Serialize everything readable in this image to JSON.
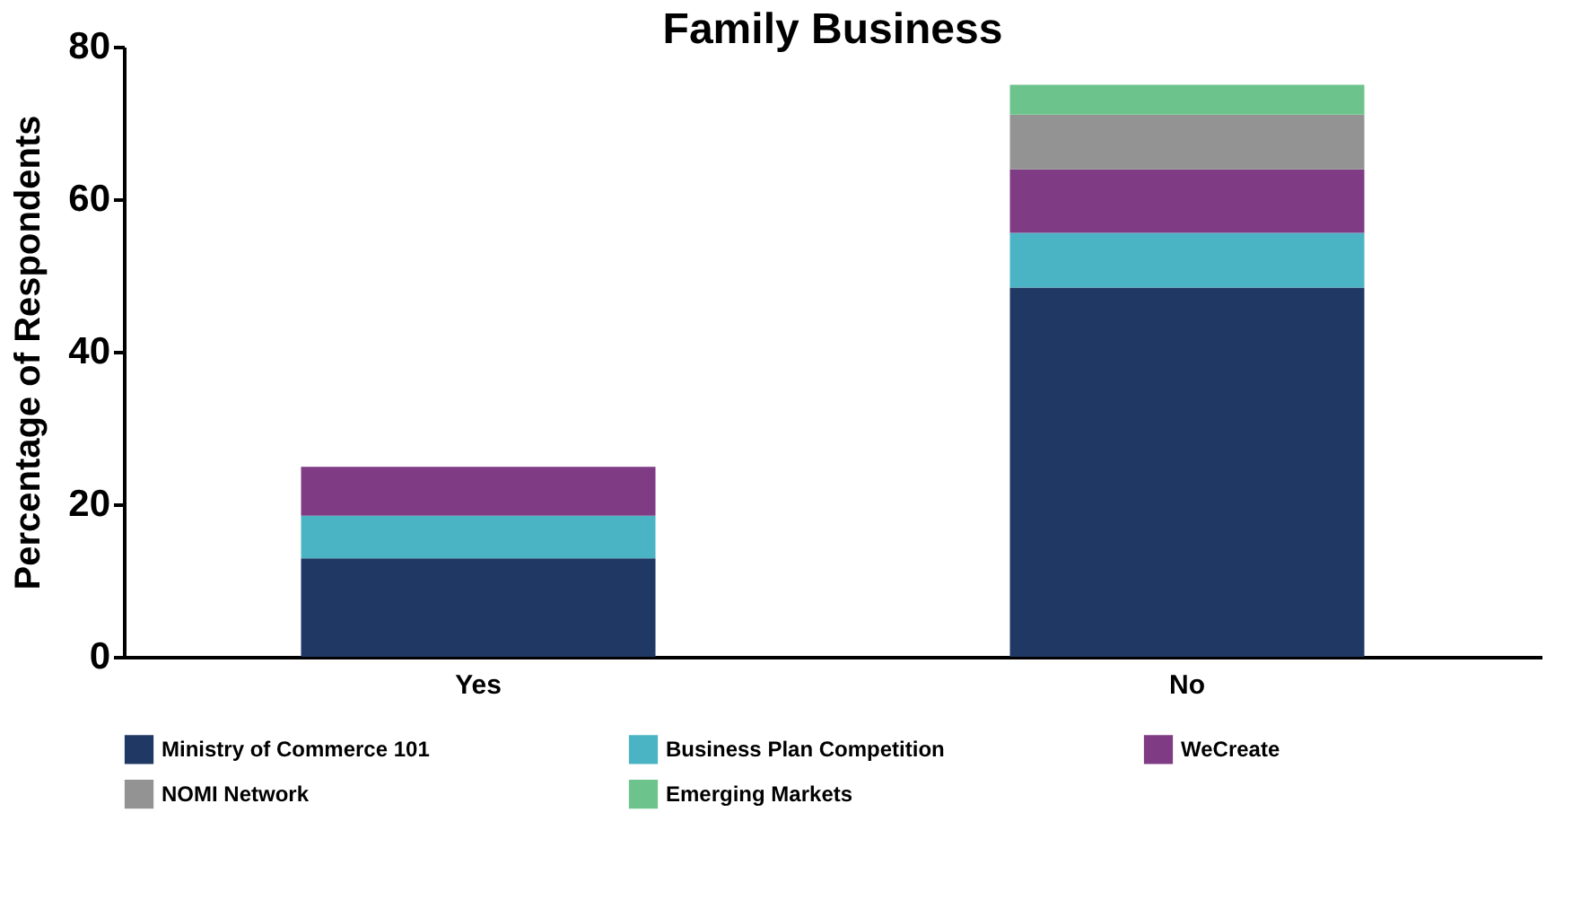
{
  "chart_data": {
    "type": "bar",
    "title": "Family Business",
    "ylabel": "Percentage of Respondents",
    "categories": [
      "Yes",
      "No"
    ],
    "stacked": true,
    "series": [
      {
        "name": "Ministry of Commerce 101",
        "color": "#203864",
        "values": [
          12.9,
          48.4
        ]
      },
      {
        "name": "Business Plan Competition",
        "color": "#4bb4c4",
        "values": [
          5.6,
          7.2
        ]
      },
      {
        "name": "WeCreate",
        "color": "#7f3c85",
        "values": [
          6.4,
          8.3
        ]
      },
      {
        "name": "NOMI Network",
        "color": "#939393",
        "values": [
          0,
          7.2
        ]
      },
      {
        "name": "Emerging Markets",
        "color": "#6cc48c",
        "values": [
          0,
          3.9
        ]
      }
    ],
    "ylim": [
      0,
      80
    ],
    "yticks": [
      0,
      20,
      40,
      60,
      80
    ],
    "grid": false,
    "legend": "bottom"
  }
}
